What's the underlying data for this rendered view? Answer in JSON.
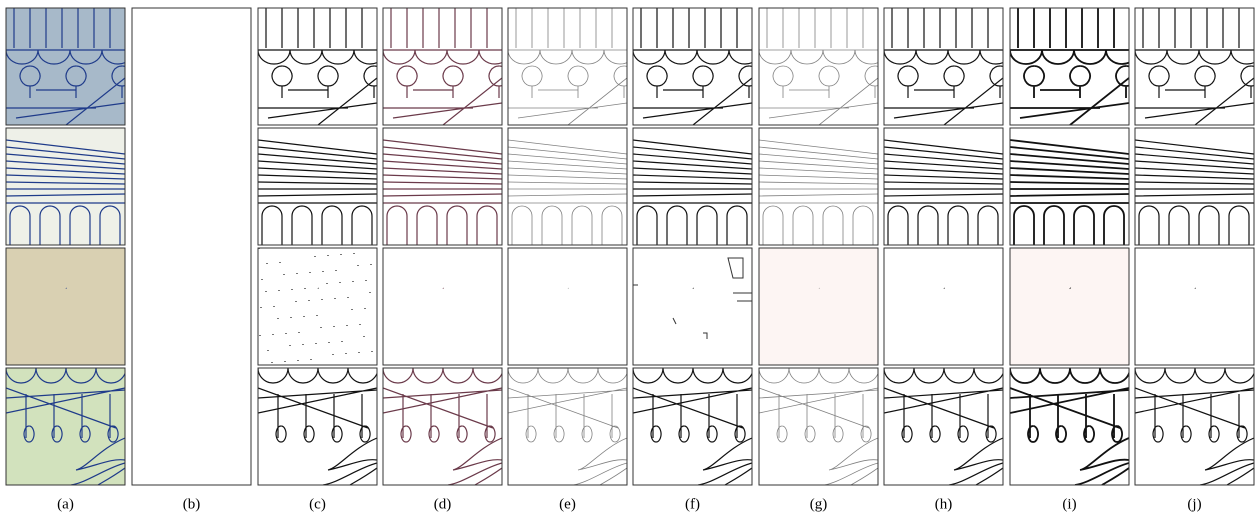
{
  "figure": {
    "labels": [
      "(a)",
      "(b)",
      "(c)",
      "(d)",
      "(e)",
      "(f)",
      "(g)",
      "(h)",
      "(i)",
      "(j)"
    ]
  }
}
